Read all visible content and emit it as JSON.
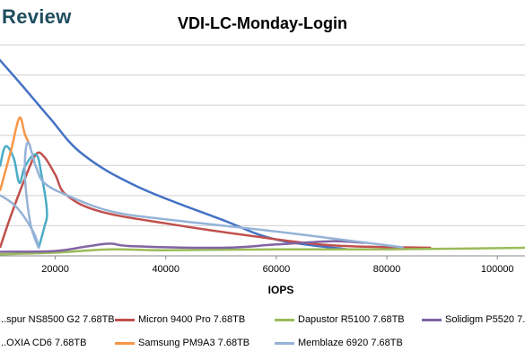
{
  "header": {
    "brand_text": "Review"
  },
  "chart_data": {
    "type": "line",
    "title": "VDI-LC-Monday-Login",
    "xlabel": "IOPS",
    "ylabel": "",
    "xlim": [
      10000,
      105000
    ],
    "x_ticks": [
      "20000",
      "40000",
      "60000",
      "80000",
      "100000"
    ],
    "x_tick_values": [
      20000,
      40000,
      60000,
      80000,
      100000
    ],
    "grid": "horizontal",
    "legend_placement": "bottom",
    "series": [
      {
        "name": "...spur NS8500 G2 7.68TB",
        "color": "#4472c4",
        "points": [
          [
            9500,
            2.45
          ],
          [
            14000,
            2.1
          ],
          [
            19000,
            1.7
          ],
          [
            25000,
            1.25
          ],
          [
            35000,
            0.85
          ],
          [
            50000,
            0.45
          ],
          [
            60000,
            0.2
          ],
          [
            73000,
            0.08
          ]
        ]
      },
      {
        "name": "Micron 9400 Pro 7.68TB",
        "color": "#c0504d",
        "points": [
          [
            10000,
            0.1
          ],
          [
            12000,
            0.5
          ],
          [
            14500,
            0.95
          ],
          [
            16500,
            1.25
          ],
          [
            18000,
            1.22
          ],
          [
            20000,
            1.0
          ],
          [
            22000,
            0.75
          ],
          [
            28000,
            0.55
          ],
          [
            40000,
            0.4
          ],
          [
            55000,
            0.25
          ],
          [
            70000,
            0.13
          ],
          [
            88000,
            0.1
          ]
        ]
      },
      {
        "name": "Dapustor R5100 7.68TB",
        "color": "#9bbb59",
        "points": [
          [
            10000,
            0.02
          ],
          [
            20000,
            0.04
          ],
          [
            30000,
            0.08
          ],
          [
            40000,
            0.07
          ],
          [
            60000,
            0.08
          ],
          [
            80000,
            0.08
          ],
          [
            105000,
            0.1
          ]
        ]
      },
      {
        "name": "Solidigm P5520 7...",
        "color": "#8064a2",
        "points": [
          [
            10000,
            0.05
          ],
          [
            20000,
            0.06
          ],
          [
            26000,
            0.12
          ],
          [
            30000,
            0.15
          ],
          [
            34000,
            0.12
          ],
          [
            50000,
            0.1
          ],
          [
            60000,
            0.14
          ],
          [
            70000,
            0.18
          ],
          [
            76000,
            0.16
          ]
        ]
      },
      {
        "name": "...OXIA CD6 7.68TB",
        "color": "#4bacc6",
        "points": [
          [
            10000,
            1.1
          ],
          [
            11000,
            1.35
          ],
          [
            12500,
            1.2
          ],
          [
            13500,
            0.9
          ],
          [
            14500,
            1.1
          ],
          [
            16500,
            1.25
          ],
          [
            17500,
            1.0
          ],
          [
            18500,
            0.55
          ],
          [
            18000,
            0.35
          ],
          [
            17000,
            0.1
          ]
        ]
      },
      {
        "name": "Samsung PM9A3 7.68TB",
        "color": "#f79646",
        "points": [
          [
            10000,
            0.8
          ],
          [
            12000,
            1.3
          ],
          [
            13500,
            1.7
          ],
          [
            14500,
            1.5
          ],
          [
            15500,
            1.35
          ]
        ]
      },
      {
        "name": "Memblaze 6920 7.68TB",
        "color": "#95b3d7",
        "points": [
          [
            10000,
            0.75
          ],
          [
            13000,
            0.6
          ],
          [
            16000,
            0.3
          ],
          [
            17000,
            0.1
          ],
          [
            15500,
            0.4
          ],
          [
            14500,
            1.0
          ],
          [
            15000,
            1.4
          ],
          [
            16500,
            1.1
          ],
          [
            18000,
            0.9
          ],
          [
            22000,
            0.75
          ],
          [
            30000,
            0.55
          ],
          [
            40000,
            0.45
          ],
          [
            60000,
            0.3
          ],
          [
            80000,
            0.13
          ],
          [
            83000,
            0.1
          ]
        ]
      }
    ]
  }
}
